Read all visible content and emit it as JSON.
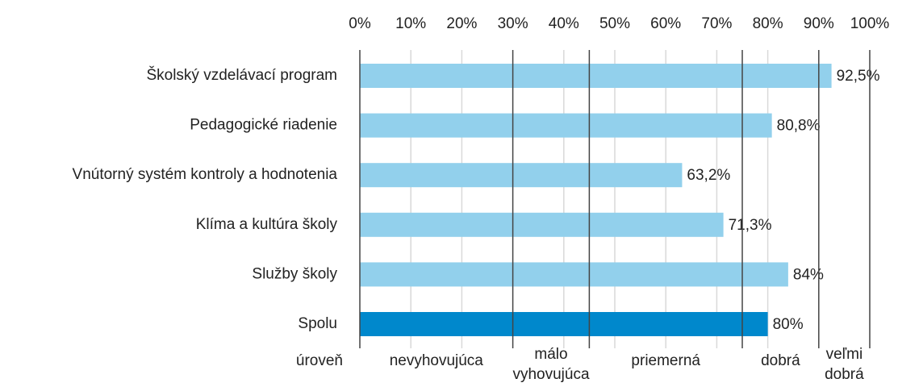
{
  "chart_data": {
    "type": "barh",
    "categories": [
      "Školský vzdelávací program",
      "Pedagogické riadenie",
      "Vnútorný systém kontroly a hodnotenia",
      "Klíma a kultúra školy",
      "Služby školy",
      "Spolu"
    ],
    "values": [
      92.5,
      80.8,
      63.2,
      71.3,
      84,
      80
    ],
    "value_labels": [
      "92,5%",
      "80,8%",
      "63,2%",
      "71,3%",
      "84%",
      "80%"
    ],
    "colors": [
      "#92d0ec",
      "#92d0ec",
      "#92d0ec",
      "#92d0ec",
      "#92d0ec",
      "#0088cc"
    ],
    "xlim": [
      0,
      100
    ],
    "xticks": [
      {
        "value": 0,
        "label": "0%"
      },
      {
        "value": 10,
        "label": "10%"
      },
      {
        "value": 20,
        "label": "20%"
      },
      {
        "value": 30,
        "label": "30%"
      },
      {
        "value": 40,
        "label": "40%"
      },
      {
        "value": 50,
        "label": "50%"
      },
      {
        "value": 60,
        "label": "60%"
      },
      {
        "value": 70,
        "label": "70%"
      },
      {
        "value": 80,
        "label": "80%"
      },
      {
        "value": 90,
        "label": "90%"
      },
      {
        "value": 100,
        "label": "100%"
      }
    ],
    "grid": true,
    "level_title": "úroveň",
    "levels": [
      {
        "label": "nevyhovujúca",
        "from": 0,
        "to": 30
      },
      {
        "label": "málo vyhovujúca",
        "from": 30,
        "to": 45
      },
      {
        "label": "priemerná",
        "from": 45,
        "to": 75
      },
      {
        "label": "dobrá",
        "from": 75,
        "to": 90
      },
      {
        "label": "veľmi dobrá",
        "from": 90,
        "to": 100
      }
    ]
  }
}
